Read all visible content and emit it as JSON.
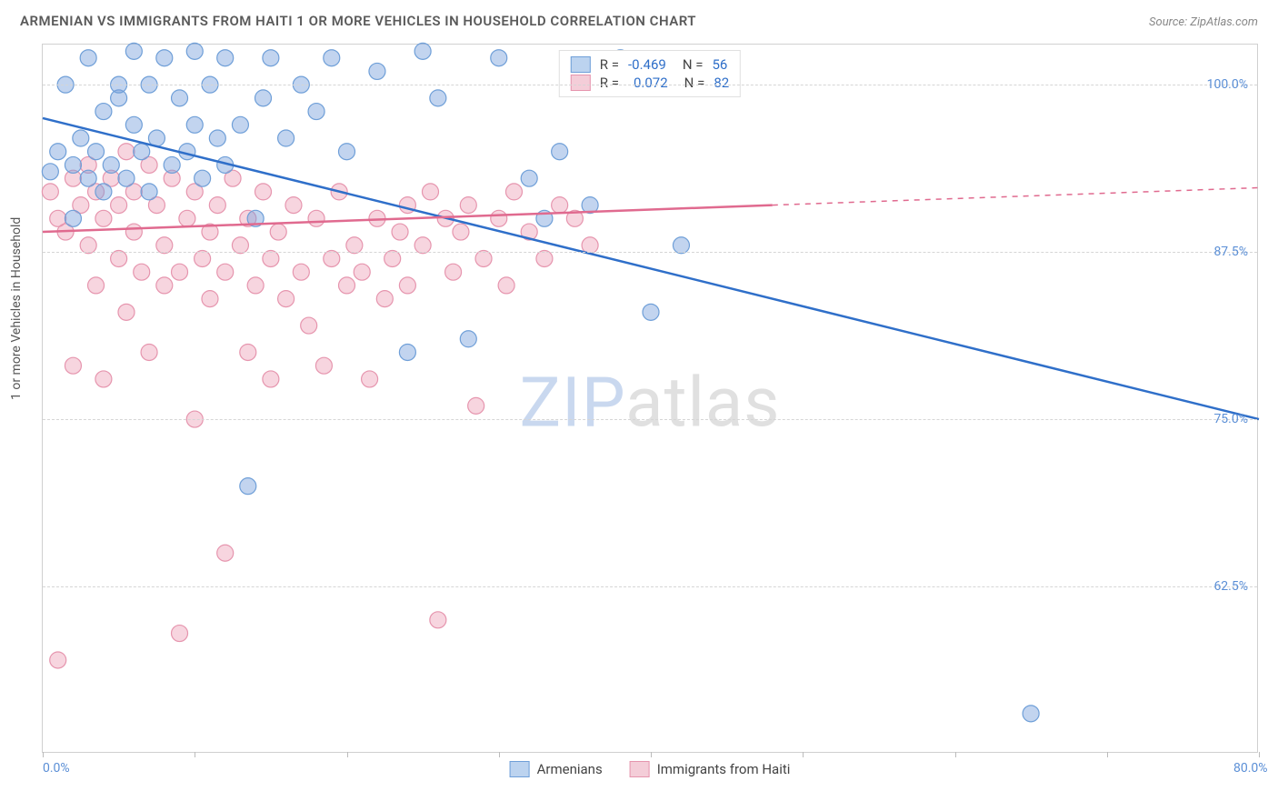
{
  "title": "ARMENIAN VS IMMIGRANTS FROM HAITI 1 OR MORE VEHICLES IN HOUSEHOLD CORRELATION CHART",
  "source": "Source: ZipAtlas.com",
  "ylabel": "1 or more Vehicles in Household",
  "watermark_a": "ZIP",
  "watermark_b": "atlas",
  "chart": {
    "type": "scatter-with-regression",
    "background_color": "#ffffff",
    "border_color": "#d0d0d0",
    "grid_color": "#d5d5d5",
    "xlim": [
      0,
      80
    ],
    "ylim": [
      50,
      103
    ],
    "yticks": [
      62.5,
      75.0,
      87.5,
      100.0
    ],
    "ytick_labels": [
      "62.5%",
      "75.0%",
      "87.5%",
      "100.0%"
    ],
    "xticks": [
      0,
      10,
      20,
      30,
      40,
      50,
      60,
      70,
      80
    ],
    "xtick_labels_shown": {
      "0": "0.0%",
      "80": "80.0%"
    },
    "tick_color": "#5b8fd6",
    "tick_fontsize": 14
  },
  "series_a": {
    "label": "Armenians",
    "marker_fill": "rgba(120,160,220,0.45)",
    "marker_stroke": "#6f9fd8",
    "marker_radius": 9,
    "swatch_fill": "#bcd3ef",
    "swatch_border": "#6f9fd8",
    "line_color": "#2f6fc9",
    "line_width": 2.5,
    "R": "-0.469",
    "N": "56",
    "trend": {
      "x1": 0,
      "y1": 97.5,
      "x2": 80,
      "y2": 75.0
    },
    "points": [
      [
        0.5,
        93.5
      ],
      [
        1,
        95
      ],
      [
        1.5,
        100
      ],
      [
        2,
        90
      ],
      [
        2,
        94
      ],
      [
        2.5,
        96
      ],
      [
        3,
        102
      ],
      [
        3,
        93
      ],
      [
        3.5,
        95
      ],
      [
        4,
        98
      ],
      [
        4,
        92
      ],
      [
        4.5,
        94
      ],
      [
        5,
        99
      ],
      [
        5,
        100
      ],
      [
        5.5,
        93
      ],
      [
        6,
        102.5
      ],
      [
        6,
        97
      ],
      [
        6.5,
        95
      ],
      [
        7,
        100
      ],
      [
        7,
        92
      ],
      [
        7.5,
        96
      ],
      [
        8,
        102
      ],
      [
        8.5,
        94
      ],
      [
        9,
        99
      ],
      [
        9.5,
        95
      ],
      [
        10,
        102.5
      ],
      [
        10,
        97
      ],
      [
        10.5,
        93
      ],
      [
        11,
        100
      ],
      [
        11.5,
        96
      ],
      [
        12,
        94
      ],
      [
        12,
        102
      ],
      [
        13,
        97
      ],
      [
        13.5,
        70
      ],
      [
        14,
        90
      ],
      [
        14.5,
        99
      ],
      [
        15,
        102
      ],
      [
        16,
        96
      ],
      [
        17,
        100
      ],
      [
        18,
        98
      ],
      [
        19,
        102
      ],
      [
        20,
        95
      ],
      [
        22,
        101
      ],
      [
        24,
        80
      ],
      [
        25,
        102.5
      ],
      [
        26,
        99
      ],
      [
        28,
        81
      ],
      [
        30,
        102
      ],
      [
        32,
        93
      ],
      [
        33,
        90
      ],
      [
        34,
        95
      ],
      [
        36,
        91
      ],
      [
        38,
        102
      ],
      [
        40,
        83
      ],
      [
        42,
        88
      ],
      [
        65,
        53
      ]
    ]
  },
  "series_b": {
    "label": "Immigrants from Haiti",
    "marker_fill": "rgba(235,150,175,0.40)",
    "marker_stroke": "#e695ae",
    "marker_radius": 9,
    "swatch_fill": "#f4cdd8",
    "swatch_border": "#e695ae",
    "line_color": "#e06a8f",
    "line_width": 2.5,
    "R": "0.072",
    "N": "82",
    "trend_solid": {
      "x1": 0,
      "y1": 89.0,
      "x2": 48,
      "y2": 91.0
    },
    "trend_dash": {
      "x1": 48,
      "y1": 91.0,
      "x2": 80,
      "y2": 92.3
    },
    "points": [
      [
        0.5,
        92
      ],
      [
        1,
        90
      ],
      [
        1,
        57
      ],
      [
        1.5,
        89
      ],
      [
        2,
        93
      ],
      [
        2,
        79
      ],
      [
        2.5,
        91
      ],
      [
        3,
        88
      ],
      [
        3,
        94
      ],
      [
        3.5,
        85
      ],
      [
        3.5,
        92
      ],
      [
        4,
        90
      ],
      [
        4,
        78
      ],
      [
        4.5,
        93
      ],
      [
        5,
        87
      ],
      [
        5,
        91
      ],
      [
        5.5,
        95
      ],
      [
        5.5,
        83
      ],
      [
        6,
        89
      ],
      [
        6,
        92
      ],
      [
        6.5,
        86
      ],
      [
        7,
        94
      ],
      [
        7,
        80
      ],
      [
        7.5,
        91
      ],
      [
        8,
        88
      ],
      [
        8,
        85
      ],
      [
        8.5,
        93
      ],
      [
        9,
        86
      ],
      [
        9,
        59
      ],
      [
        9.5,
        90
      ],
      [
        10,
        92
      ],
      [
        10,
        75
      ],
      [
        10.5,
        87
      ],
      [
        11,
        89
      ],
      [
        11,
        84
      ],
      [
        11.5,
        91
      ],
      [
        12,
        86
      ],
      [
        12,
        65
      ],
      [
        12.5,
        93
      ],
      [
        13,
        88
      ],
      [
        13.5,
        80
      ],
      [
        13.5,
        90
      ],
      [
        14,
        85
      ],
      [
        14.5,
        92
      ],
      [
        15,
        87
      ],
      [
        15,
        78
      ],
      [
        15.5,
        89
      ],
      [
        16,
        84
      ],
      [
        16.5,
        91
      ],
      [
        17,
        86
      ],
      [
        17.5,
        82
      ],
      [
        18,
        90
      ],
      [
        18.5,
        79
      ],
      [
        19,
        87
      ],
      [
        19.5,
        92
      ],
      [
        20,
        85
      ],
      [
        20.5,
        88
      ],
      [
        21,
        86
      ],
      [
        21.5,
        78
      ],
      [
        22,
        90
      ],
      [
        22.5,
        84
      ],
      [
        23,
        87
      ],
      [
        23.5,
        89
      ],
      [
        24,
        91
      ],
      [
        24,
        85
      ],
      [
        25,
        88
      ],
      [
        25.5,
        92
      ],
      [
        26,
        60
      ],
      [
        26.5,
        90
      ],
      [
        27,
        86
      ],
      [
        27.5,
        89
      ],
      [
        28,
        91
      ],
      [
        28.5,
        76
      ],
      [
        29,
        87
      ],
      [
        30,
        90
      ],
      [
        30.5,
        85
      ],
      [
        31,
        92
      ],
      [
        32,
        89
      ],
      [
        33,
        87
      ],
      [
        34,
        91
      ],
      [
        35,
        90
      ],
      [
        36,
        88
      ]
    ]
  },
  "legend_top": {
    "r_label": "R =",
    "n_label": "N ="
  },
  "legend_bottom": {
    "a": "Armenians",
    "b": "Immigrants from Haiti"
  }
}
